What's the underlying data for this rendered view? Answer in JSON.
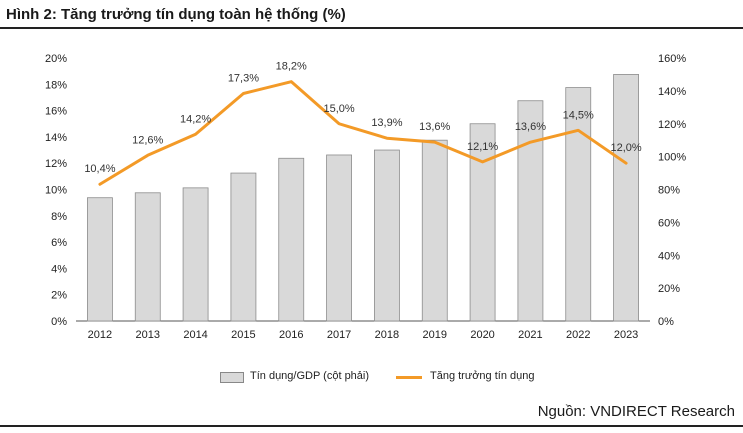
{
  "title": "Hình 2: Tăng trưởng tín dụng toàn hệ thống (%)",
  "source": "Nguồn: VNDIRECT Research",
  "colors": {
    "bar_fill": "#d9d9d9",
    "bar_stroke": "#8c8c8c",
    "line": "#f39a27"
  },
  "chart_data": {
    "type": "bar+line",
    "categories": [
      "2012",
      "2013",
      "2014",
      "2015",
      "2016",
      "2017",
      "2018",
      "2019",
      "2020",
      "2021",
      "2022",
      "2023"
    ],
    "series": [
      {
        "name": "Tín dụng/GDP (cột phải)",
        "type": "bar",
        "axis": "right",
        "values": [
          75,
          78,
          81,
          90,
          99,
          101,
          104,
          110,
          120,
          134,
          142,
          150
        ]
      },
      {
        "name": "Tăng trưởng tín dụng",
        "type": "line",
        "axis": "left",
        "values": [
          10.4,
          12.6,
          14.2,
          17.3,
          18.2,
          15.0,
          13.9,
          13.6,
          12.1,
          13.6,
          14.5,
          12.0
        ],
        "labels": [
          "10,4%",
          "12,6%",
          "14,2%",
          "17,3%",
          "18,2%",
          "15,0%",
          "13,9%",
          "13,6%",
          "12,1%",
          "13,6%",
          "14,5%",
          "12,0%"
        ]
      }
    ],
    "left_axis": {
      "ylim": [
        0,
        20
      ],
      "ticks": [
        0,
        2,
        4,
        6,
        8,
        10,
        12,
        14,
        16,
        18,
        20
      ],
      "tick_labels": [
        "0%",
        "2%",
        "4%",
        "6%",
        "8%",
        "10%",
        "12%",
        "14%",
        "16%",
        "18%",
        "20%"
      ]
    },
    "right_axis": {
      "ylim": [
        0,
        160
      ],
      "ticks": [
        0,
        20,
        40,
        60,
        80,
        100,
        120,
        140,
        160
      ],
      "tick_labels": [
        "0%",
        "20%",
        "40%",
        "60%",
        "80%",
        "100%",
        "120%",
        "140%",
        "160%"
      ]
    },
    "grid": false,
    "legend": "bottom"
  }
}
